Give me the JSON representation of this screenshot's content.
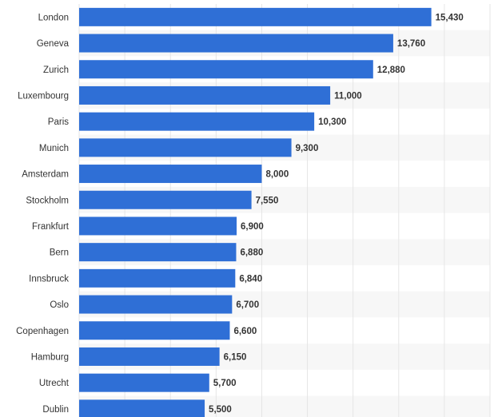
{
  "chart_data": {
    "type": "bar",
    "orientation": "horizontal",
    "categories": [
      "London",
      "Geneva",
      "Zurich",
      "Luxembourg",
      "Paris",
      "Munich",
      "Amsterdam",
      "Stockholm",
      "Frankfurt",
      "Bern",
      "Innsbruck",
      "Oslo",
      "Copenhagen",
      "Hamburg",
      "Utrecht",
      "Dublin"
    ],
    "values": [
      15430,
      13760,
      12880,
      11000,
      10300,
      9300,
      8000,
      7550,
      6900,
      6880,
      6840,
      6700,
      6600,
      6150,
      5700,
      5500
    ],
    "value_labels": [
      "15,430",
      "13,760",
      "12,880",
      "11,000",
      "10,300",
      "9,300",
      "8,000",
      "7,550",
      "6,900",
      "6,880",
      "6,840",
      "6,700",
      "6,600",
      "6,150",
      "5,700",
      "5,500"
    ],
    "title": "",
    "xlabel": "",
    "ylabel": "",
    "xlim": [
      0,
      18000
    ],
    "grid": true,
    "legend": "none",
    "colors": {
      "bar": "#2f6fd6",
      "band_alt": "#f7f7f7",
      "gridline": "#e6e6e6",
      "text": "#333333"
    }
  }
}
